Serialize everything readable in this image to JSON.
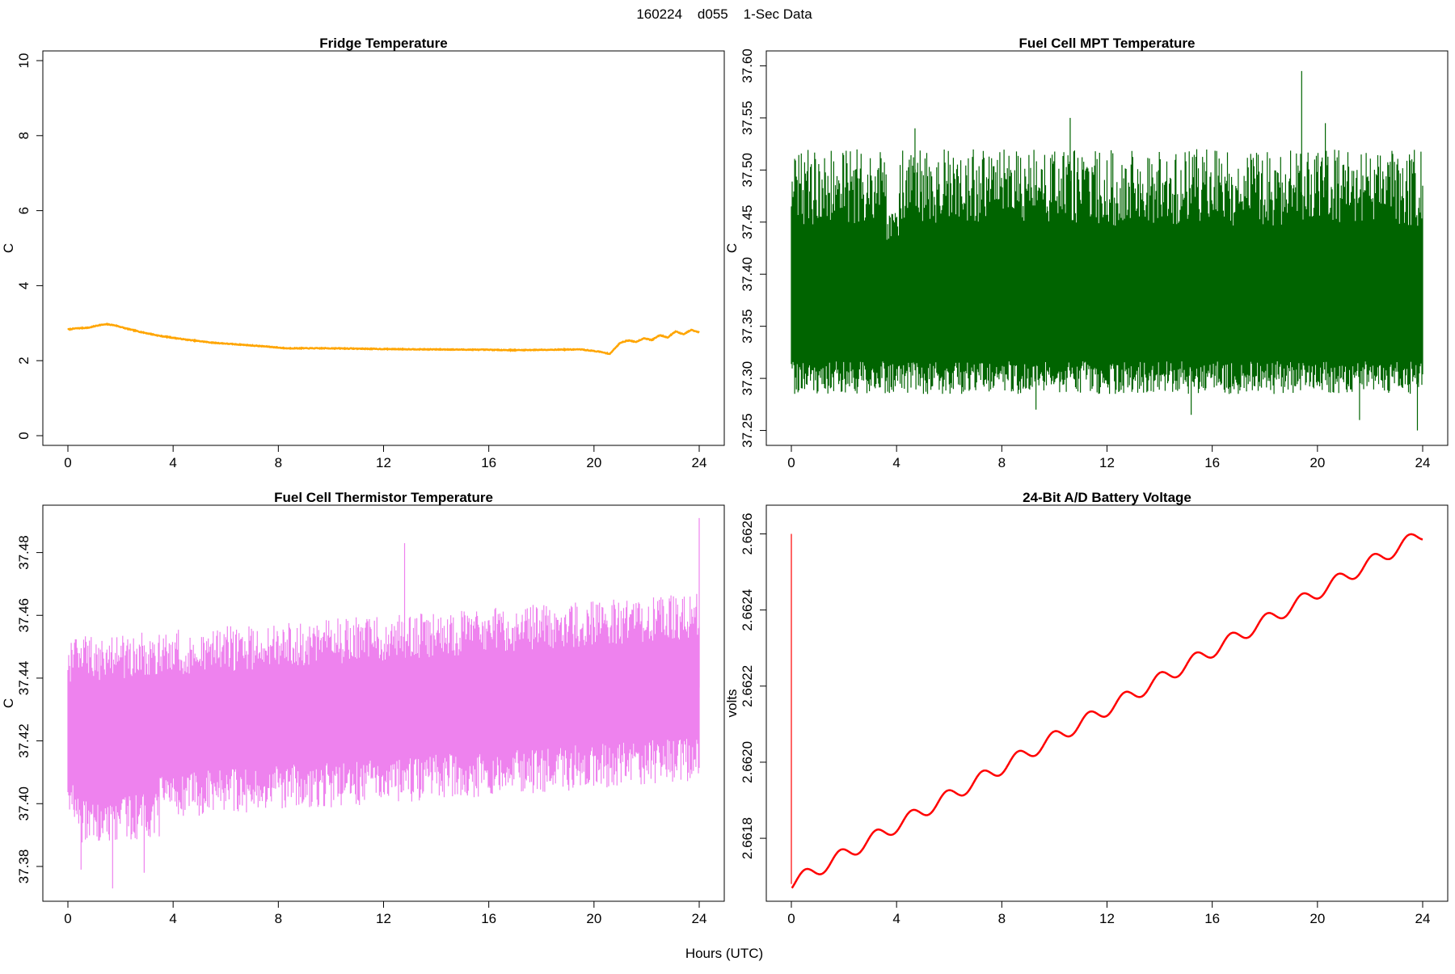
{
  "figure": {
    "suptitle": "160224    d055    1-Sec Data",
    "xlabel_global": "Hours (UTC)"
  },
  "chart_data": [
    {
      "id": "fridge",
      "type": "line",
      "title": "Fridge Temperature",
      "xlabel": "",
      "ylabel": "C",
      "xlim": [
        0,
        24
      ],
      "ylim": [
        0,
        10
      ],
      "xticks": [
        0,
        4,
        8,
        12,
        16,
        20,
        24
      ],
      "yticks": [
        0,
        2,
        4,
        6,
        8,
        10
      ],
      "ytick_labels": [
        "0",
        "2",
        "4",
        "6",
        "8",
        "10"
      ],
      "color": "#ffa500",
      "noise": 0.02,
      "series": [
        {
          "name": "Fridge Temperature",
          "x": [
            0,
            0.3,
            0.8,
            1.2,
            1.5,
            1.8,
            2.2,
            2.8,
            3.5,
            4.5,
            5.5,
            6.5,
            7.5,
            8.3,
            9,
            10,
            12,
            14,
            16,
            17,
            18,
            19.5,
            20.2,
            20.6,
            21.0,
            21.3,
            21.6,
            21.9,
            22.2,
            22.5,
            22.8,
            23.1,
            23.4,
            23.7,
            24
          ],
          "y": [
            2.83,
            2.86,
            2.88,
            2.95,
            2.97,
            2.94,
            2.86,
            2.76,
            2.66,
            2.56,
            2.48,
            2.43,
            2.38,
            2.33,
            2.33,
            2.33,
            2.31,
            2.3,
            2.29,
            2.28,
            2.29,
            2.3,
            2.24,
            2.18,
            2.48,
            2.54,
            2.5,
            2.6,
            2.55,
            2.68,
            2.62,
            2.78,
            2.7,
            2.82,
            2.75
          ]
        }
      ]
    },
    {
      "id": "mpt",
      "type": "line",
      "title": "Fuel Cell MPT Temperature",
      "xlabel": "",
      "ylabel": "C",
      "xlim": [
        0,
        24
      ],
      "ylim": [
        37.245,
        37.605
      ],
      "xticks": [
        0,
        4,
        8,
        12,
        16,
        20,
        24
      ],
      "yticks": [
        37.25,
        37.3,
        37.35,
        37.4,
        37.45,
        37.5,
        37.55,
        37.6
      ],
      "ytick_labels": [
        "37.25",
        "37.30",
        "37.35",
        "37.40",
        "37.45",
        "37.50",
        "37.55",
        "37.60"
      ],
      "color": "#006400",
      "band": {
        "center": 37.37,
        "core_low": 37.33,
        "core_high": 37.415,
        "min": 37.25,
        "max": 37.595,
        "typical_low": 37.285,
        "typical_high": 37.52
      }
    },
    {
      "id": "thermistor",
      "type": "line",
      "title": "Fuel Cell Thermistor Temperature",
      "xlabel": "",
      "ylabel": "C",
      "xlim": [
        0,
        24
      ],
      "ylim": [
        37.372,
        37.492
      ],
      "xticks": [
        0,
        4,
        8,
        12,
        16,
        20,
        24
      ],
      "yticks": [
        37.38,
        37.4,
        37.42,
        37.44,
        37.46,
        37.48
      ],
      "ytick_labels": [
        "37.38",
        "37.40",
        "37.42",
        "37.44",
        "37.46",
        "37.48"
      ],
      "color": "#ee82ee",
      "band": {
        "start_center": 37.423,
        "end_center": 37.437,
        "core_half": 0.012,
        "min": 37.373,
        "max": 37.491,
        "typical_low_offset": -0.03,
        "typical_high_offset": 0.03
      }
    },
    {
      "id": "battery",
      "type": "line",
      "title": "24-Bit A/D Battery Voltage",
      "xlabel": "",
      "ylabel": "volts",
      "xlim": [
        0,
        24
      ],
      "ylim": [
        2.66166,
        2.66265
      ],
      "xticks": [
        0,
        4,
        8,
        12,
        16,
        20,
        24
      ],
      "yticks": [
        2.6618,
        2.662,
        2.6622,
        2.6624,
        2.6626
      ],
      "ytick_labels": [
        "2.6618",
        "2.6620",
        "2.6622",
        "2.6624",
        "2.6626"
      ],
      "color": "#ff0000",
      "spike": {
        "x": 0,
        "y_top": 2.6626,
        "y_bottom": 2.66168
      },
      "series": [
        {
          "name": "Battery Voltage",
          "start": 2.66168,
          "end": 2.6626,
          "oscillation_period_hours": 1.35,
          "oscillation_amplitude": 1.8e-05
        }
      ]
    }
  ]
}
